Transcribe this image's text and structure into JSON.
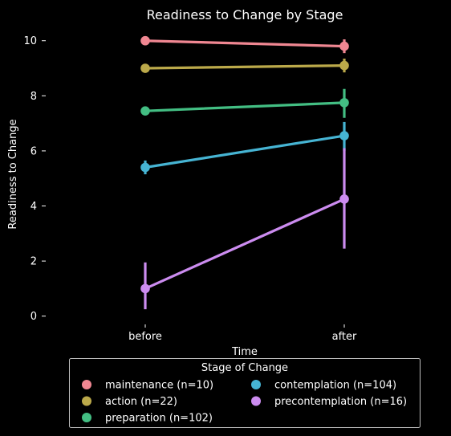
{
  "chart_data": {
    "type": "line",
    "title": "Readiness to Change by Stage",
    "xlabel": "Time",
    "ylabel": "Readiness to Change",
    "categories": [
      "before",
      "after"
    ],
    "ylim": [
      -0.3,
      10.4
    ],
    "yticks": [
      0,
      2,
      4,
      6,
      8,
      10
    ],
    "grid": false,
    "background": "#000000",
    "legend": {
      "title": "Stage of Change",
      "placement": "bottom-center",
      "columns": 2
    },
    "series": [
      {
        "name": "maintenance (n=10)",
        "color": "#f08792",
        "values": [
          10.0,
          9.8
        ],
        "ci_low": [
          10.0,
          9.55
        ],
        "ci_high": [
          10.0,
          10.05
        ]
      },
      {
        "name": "action (n=22)",
        "color": "#bba94a",
        "values": [
          9.0,
          9.1
        ],
        "ci_low": [
          9.0,
          8.85
        ],
        "ci_high": [
          9.0,
          9.35
        ]
      },
      {
        "name": "preparation (n=102)",
        "color": "#43be83",
        "values": [
          7.45,
          7.75
        ],
        "ci_low": [
          7.3,
          7.2
        ],
        "ci_high": [
          7.6,
          8.25
        ]
      },
      {
        "name": "contemplation (n=104)",
        "color": "#46b4d3",
        "values": [
          5.4,
          6.55
        ],
        "ci_low": [
          5.15,
          6.0
        ],
        "ci_high": [
          5.65,
          7.05
        ]
      },
      {
        "name": "precontemplation (n=16)",
        "color": "#cc8cf0",
        "values": [
          1.0,
          4.25
        ],
        "ci_low": [
          0.25,
          2.45
        ],
        "ci_high": [
          1.95,
          6.1
        ]
      }
    ]
  }
}
